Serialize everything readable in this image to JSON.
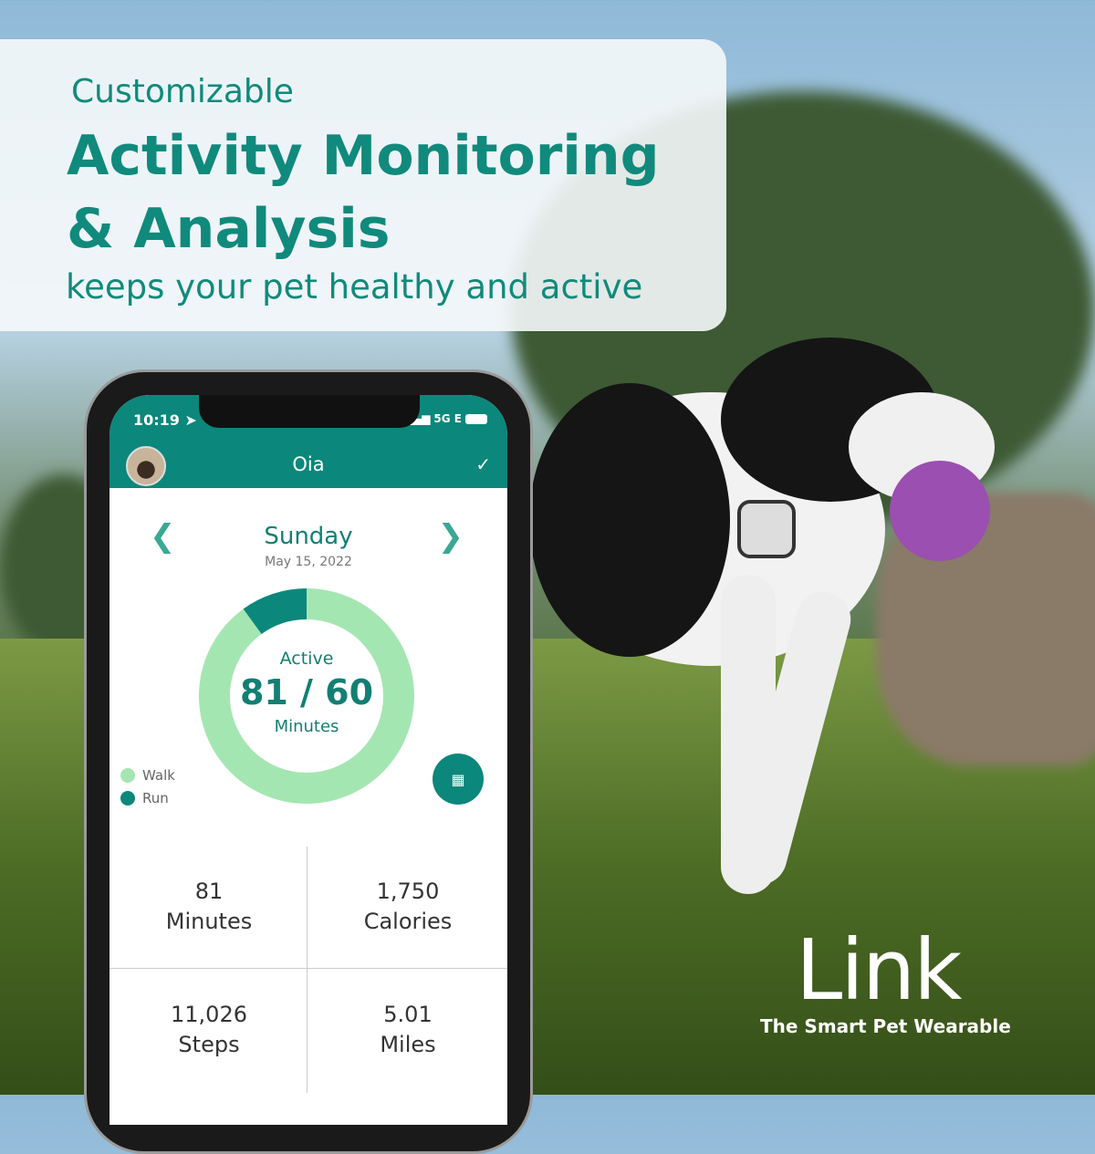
{
  "banner": {
    "subtitle": "Customizable",
    "title_line1": "Activity Monitoring",
    "title_line2": "& Analysis",
    "tagline": "keeps your pet healthy and active"
  },
  "status_bar": {
    "time": "10:19",
    "network": "5G E"
  },
  "app_header": {
    "pet_name": "Oia"
  },
  "day_nav": {
    "day": "Sunday",
    "date": "May 15, 2022"
  },
  "activity": {
    "label": "Active",
    "value": "81 / 60",
    "unit": "Minutes",
    "walk_fraction": 0.9,
    "run_fraction": 0.1,
    "colors": {
      "walk": "#a4e6b2",
      "run": "#0c877b"
    }
  },
  "legend": [
    {
      "label": "Walk"
    },
    {
      "label": "Run"
    }
  ],
  "stats": [
    {
      "value": "81",
      "label": "Minutes"
    },
    {
      "value": "1,750",
      "label": "Calories"
    },
    {
      "value": "11,026",
      "label": "Steps"
    },
    {
      "value": "5.01",
      "label": "Miles"
    }
  ],
  "brand": {
    "logo": "Link",
    "tagline": "The Smart Pet Wearable"
  },
  "colors": {
    "primary": "#0c877b"
  }
}
